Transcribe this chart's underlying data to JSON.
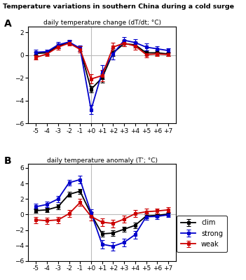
{
  "title": "Temperature variations in southern China during a cold surge",
  "x_labels": [
    "-5",
    "-4",
    "-3",
    "-2",
    "-1",
    "+0",
    "+1",
    "+2",
    "+3",
    "+4",
    "+5",
    "+6",
    "+7"
  ],
  "x_vals": [
    -5,
    -4,
    -3,
    -2,
    -1,
    0,
    1,
    2,
    3,
    4,
    5,
    6,
    7
  ],
  "panel_A": {
    "subtitle": "daily temperature change (dT/dt; °C)",
    "label": "A",
    "clim_y": [
      0.15,
      0.2,
      0.8,
      1.1,
      0.55,
      -3.0,
      -2.0,
      0.2,
      1.0,
      0.9,
      0.2,
      0.2,
      0.1
    ],
    "strong_y": [
      0.25,
      0.3,
      0.9,
      1.15,
      0.6,
      -4.8,
      -1.5,
      0.1,
      1.3,
      1.1,
      0.7,
      0.55,
      0.4
    ],
    "weak_y": [
      -0.2,
      0.1,
      0.7,
      1.05,
      0.5,
      -2.1,
      -1.8,
      0.7,
      1.05,
      0.8,
      0.05,
      0.1,
      0.05
    ],
    "clim_err": [
      0.15,
      0.15,
      0.2,
      0.15,
      0.2,
      0.3,
      0.4,
      0.3,
      0.25,
      0.25,
      0.2,
      0.2,
      0.15
    ],
    "strong_err": [
      0.2,
      0.2,
      0.25,
      0.2,
      0.25,
      0.4,
      0.6,
      0.5,
      0.3,
      0.3,
      0.3,
      0.25,
      0.2
    ],
    "weak_err": [
      0.2,
      0.2,
      0.2,
      0.2,
      0.25,
      0.4,
      0.5,
      0.4,
      0.3,
      0.3,
      0.25,
      0.2,
      0.15
    ],
    "ylim": [
      -6.0,
      2.5
    ],
    "yticks": [
      -6.0,
      -4.0,
      -2.0,
      0.0,
      2.0
    ]
  },
  "panel_B": {
    "subtitle": "daily temperature anomaly (T'; °C)",
    "label": "B",
    "clim_y": [
      0.5,
      0.6,
      1.0,
      2.6,
      3.0,
      0.05,
      -2.5,
      -2.4,
      -1.9,
      -1.4,
      -0.2,
      -0.1,
      0.05
    ],
    "strong_y": [
      1.0,
      1.3,
      2.0,
      4.1,
      4.5,
      0.2,
      -3.85,
      -4.1,
      -3.6,
      -2.6,
      -0.3,
      -0.25,
      -0.05
    ],
    "weak_y": [
      -0.7,
      -0.8,
      -0.7,
      0.1,
      1.55,
      -0.25,
      -1.0,
      -1.15,
      -0.6,
      0.1,
      0.35,
      0.45,
      0.6
    ],
    "clim_err": [
      0.25,
      0.25,
      0.3,
      0.3,
      0.3,
      0.3,
      0.35,
      0.35,
      0.35,
      0.35,
      0.3,
      0.25,
      0.2
    ],
    "strong_err": [
      0.35,
      0.35,
      0.4,
      0.4,
      0.5,
      0.5,
      0.55,
      0.55,
      0.5,
      0.5,
      0.4,
      0.35,
      0.3
    ],
    "weak_err": [
      0.4,
      0.4,
      0.4,
      0.45,
      0.45,
      0.5,
      0.5,
      0.5,
      0.45,
      0.45,
      0.4,
      0.35,
      0.3
    ],
    "ylim": [
      -6.0,
      6.5
    ],
    "yticks": [
      -6.0,
      -4.0,
      -2.0,
      0.0,
      2.0,
      4.0,
      6.0
    ]
  },
  "colors": {
    "clim": "#000000",
    "strong": "#0000CC",
    "weak": "#CC0000"
  },
  "legend_labels": [
    "clim",
    "strong",
    "weak"
  ],
  "marker": "s",
  "markersize": 3.5,
  "linewidth": 1.3,
  "capsize": 2,
  "elinewidth": 0.9,
  "grid_color": "#bbbbbb",
  "grid_alpha": 0.8
}
